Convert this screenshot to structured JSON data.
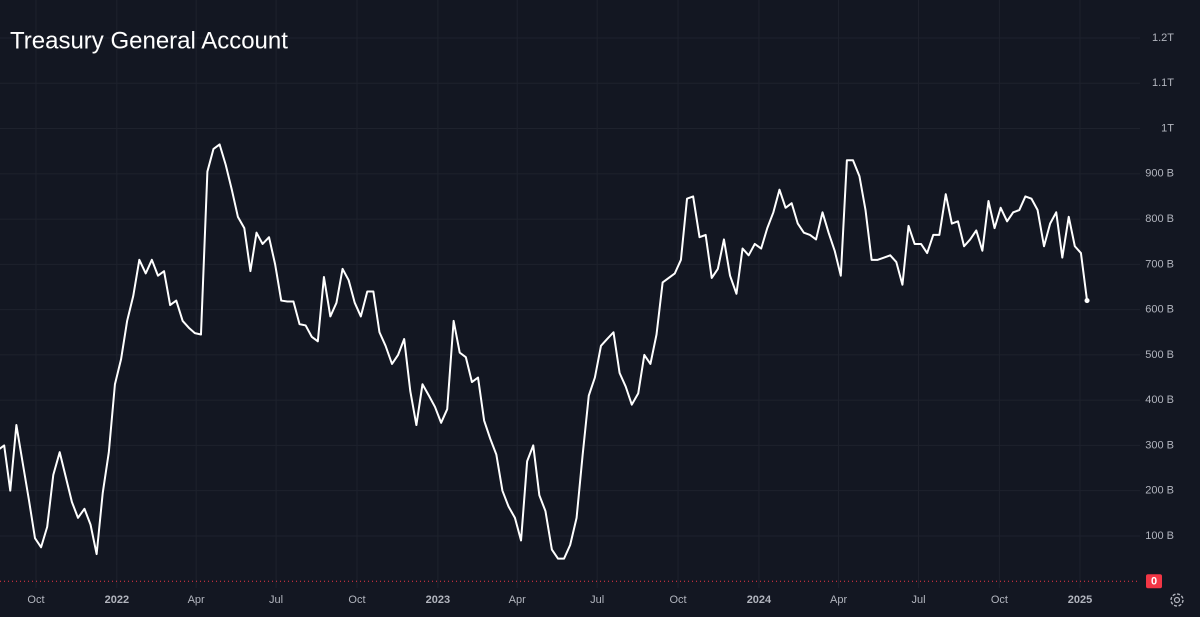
{
  "chart_data": {
    "type": "line",
    "title": "Treasury General Account",
    "color": "#ffffff",
    "grid": true,
    "x": [
      2021.63,
      2021.649,
      2021.668,
      2021.687,
      2021.707,
      2021.726,
      2021.745,
      2021.764,
      2021.783,
      2021.802,
      2021.822,
      2021.841,
      2021.86,
      2021.879,
      2021.899,
      2021.918,
      2021.937,
      2021.956,
      2021.975,
      2021.994,
      2022.013,
      2022.032,
      2022.051,
      2022.07,
      2022.09,
      2022.109,
      2022.128,
      2022.147,
      2022.166,
      2022.185,
      2022.205,
      2022.224,
      2022.243,
      2022.262,
      2022.282,
      2022.301,
      2022.32,
      2022.339,
      2022.358,
      2022.377,
      2022.397,
      2022.416,
      2022.435,
      2022.454,
      2022.474,
      2022.493,
      2022.512,
      2022.531,
      2022.55,
      2022.569,
      2022.588,
      2022.607,
      2022.626,
      2022.645,
      2022.665,
      2022.684,
      2022.703,
      2022.722,
      2022.741,
      2022.76,
      2022.78,
      2022.799,
      2022.818,
      2022.837,
      2022.857,
      2022.876,
      2022.895,
      2022.914,
      2022.933,
      2022.952,
      2022.972,
      2022.991,
      2023.01,
      2023.029,
      2023.049,
      2023.068,
      2023.087,
      2023.106,
      2023.125,
      2023.144,
      2023.163,
      2023.182,
      2023.201,
      2023.22,
      2023.24,
      2023.259,
      2023.278,
      2023.297,
      2023.316,
      2023.335,
      2023.355,
      2023.374,
      2023.393,
      2023.412,
      2023.432,
      2023.451,
      2023.47,
      2023.489,
      2023.508,
      2023.527,
      2023.547,
      2023.566,
      2023.585,
      2023.604,
      2023.624,
      2023.643,
      2023.662,
      2023.681,
      2023.7,
      2023.719,
      2023.738,
      2023.757,
      2023.776,
      2023.795,
      2023.815,
      2023.834,
      2023.853,
      2023.872,
      2023.891,
      2023.91,
      2023.93,
      2023.949,
      2023.968,
      2023.987,
      2024.007,
      2024.026,
      2024.045,
      2024.064,
      2024.083,
      2024.102,
      2024.121,
      2024.14,
      2024.159,
      2024.178,
      2024.198,
      2024.217,
      2024.236,
      2024.255,
      2024.274,
      2024.293,
      2024.313,
      2024.332,
      2024.351,
      2024.37,
      2024.39,
      2024.409,
      2024.428,
      2024.447,
      2024.466,
      2024.485,
      2024.505,
      2024.524,
      2024.543,
      2024.562,
      2024.582,
      2024.601,
      2024.62,
      2024.639,
      2024.658,
      2024.677,
      2024.696,
      2024.715,
      2024.734,
      2024.753,
      2024.773,
      2024.792,
      2024.811,
      2024.83,
      2024.849,
      2024.868,
      2024.888,
      2024.907,
      2024.926,
      2024.945,
      2024.965,
      2024.984,
      2025.003,
      2025.022
    ],
    "values": [
      290,
      300,
      200,
      345,
      260,
      180,
      95,
      75,
      120,
      235,
      285,
      230,
      175,
      140,
      160,
      125,
      60,
      195,
      285,
      435,
      490,
      575,
      630,
      710,
      680,
      710,
      675,
      685,
      610,
      620,
      575,
      560,
      548,
      545,
      905,
      955,
      965,
      920,
      865,
      805,
      780,
      685,
      770,
      745,
      760,
      700,
      620,
      618,
      618,
      568,
      565,
      540,
      530,
      672,
      585,
      615,
      690,
      665,
      615,
      585,
      640,
      640,
      550,
      520,
      480,
      500,
      535,
      420,
      345,
      435,
      410,
      385,
      350,
      380,
      575,
      505,
      495,
      440,
      450,
      355,
      315,
      280,
      200,
      165,
      140,
      90,
      265,
      300,
      190,
      155,
      70,
      50,
      50,
      80,
      140,
      280,
      410,
      450,
      520,
      535,
      550,
      460,
      430,
      390,
      415,
      500,
      480,
      545,
      660,
      670,
      680,
      710,
      845,
      850,
      760,
      765,
      670,
      690,
      755,
      675,
      635,
      735,
      720,
      745,
      735,
      780,
      815,
      865,
      825,
      835,
      790,
      770,
      765,
      755,
      815,
      770,
      730,
      675,
      930,
      930,
      895,
      820,
      710,
      710,
      715,
      720,
      705,
      655,
      785,
      745,
      745,
      725,
      765,
      765,
      855,
      790,
      795,
      740,
      755,
      775,
      730,
      840,
      780,
      825,
      795,
      815,
      820,
      850,
      845,
      820,
      740,
      790,
      815,
      715,
      805,
      740,
      725,
      620
    ],
    "xlim": [
      2021.636,
      2025.187
    ],
    "xticks": [
      {
        "value": 2021.748,
        "label": "Oct"
      },
      2022,
      {
        "value": 2022.247,
        "label": "Apr"
      },
      {
        "value": 2022.496,
        "label": "Jul"
      },
      {
        "value": 2022.748,
        "label": "Oct"
      },
      2023,
      {
        "value": 2023.247,
        "label": "Apr"
      },
      {
        "value": 2023.496,
        "label": "Jul"
      },
      {
        "value": 2023.748,
        "label": "Oct"
      },
      2024,
      {
        "value": 2024.248,
        "label": "Apr"
      },
      {
        "value": 2024.497,
        "label": "Jul"
      },
      {
        "value": 2024.749,
        "label": "Oct"
      },
      2025
    ],
    "ylim": [
      -15,
      1284
    ],
    "yticks": [
      {
        "value": 100,
        "label": "100 B"
      },
      {
        "value": 200,
        "label": "200 B"
      },
      {
        "value": 300,
        "label": "300 B"
      },
      {
        "value": 400,
        "label": "400 B"
      },
      {
        "value": 500,
        "label": "500 B"
      },
      {
        "value": 600,
        "label": "600 B"
      },
      {
        "value": 700,
        "label": "700 B"
      },
      {
        "value": 800,
        "label": "800 B"
      },
      {
        "value": 900,
        "label": "900 B"
      },
      {
        "value": 1000,
        "label": "1T"
      },
      {
        "value": 1100,
        "label": "1.1T"
      },
      {
        "value": 1200,
        "label": "1.2T"
      }
    ],
    "reference_line": {
      "value": 0,
      "color": "#f23645"
    }
  }
}
